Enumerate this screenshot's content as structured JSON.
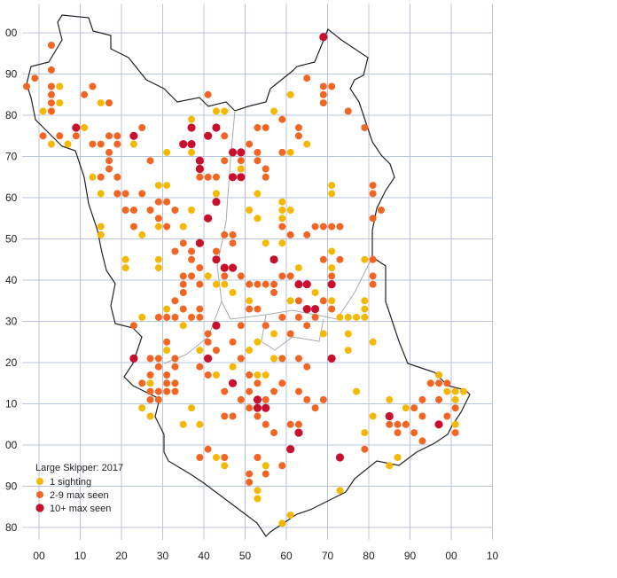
{
  "chart_data": {
    "type": "scatter",
    "title": "Large Skipper:  2017",
    "xlim": [
      -4,
      110
    ],
    "ylim": [
      77,
      207
    ],
    "xticks": [
      {
        "value": 0,
        "label": "00"
      },
      10,
      20,
      30,
      40,
      50,
      60,
      70,
      80,
      90,
      {
        "value": 100,
        "label": "00"
      },
      {
        "value": 110,
        "label": "10"
      }
    ],
    "yticks": [
      80,
      90,
      {
        "value": 100,
        "label": "00"
      },
      {
        "value": 110,
        "label": "10"
      },
      {
        "value": 120,
        "label": "20"
      },
      {
        "value": 130,
        "label": "30"
      },
      {
        "value": 140,
        "label": "40"
      },
      {
        "value": 150,
        "label": "50"
      },
      {
        "value": 160,
        "label": "60"
      },
      {
        "value": 170,
        "label": "70"
      },
      {
        "value": 180,
        "label": "80"
      },
      {
        "value": 190,
        "label": "90"
      },
      {
        "value": 200,
        "label": "00"
      }
    ],
    "grid": true,
    "series": [
      {
        "name": "1 sighting",
        "color": "#f5b800",
        "x": [
          1,
          5,
          5,
          3,
          7,
          11,
          15,
          13,
          15,
          15,
          15,
          21,
          19,
          23,
          23,
          25,
          29,
          29,
          29,
          25,
          29,
          31,
          31,
          37,
          43,
          45,
          47,
          49,
          51,
          53,
          59,
          59,
          59,
          61,
          61,
          65,
          61,
          57,
          71,
          71,
          71,
          71,
          71,
          73,
          75,
          77,
          79,
          79,
          79,
          79,
          81,
          75,
          75,
          77,
          79,
          81,
          85,
          89,
          89,
          95,
          97,
          99,
          101,
          103,
          101,
          101,
          85,
          87,
          73,
          61,
          59,
          53,
          53,
          55,
          43,
          45,
          39,
          39,
          43,
          47,
          51,
          53,
          55,
          57,
          57,
          53,
          47,
          45,
          43,
          41,
          51,
          61,
          67,
          69,
          37,
          35,
          27,
          25,
          27,
          35,
          31,
          31,
          21,
          37,
          35,
          43,
          37,
          53,
          59,
          55,
          63
        ],
        "y": [
          181,
          183,
          187,
          173,
          173,
          177,
          183,
          165,
          161,
          153,
          151,
          145,
          161,
          175,
          173,
          151,
          153,
          145,
          143,
          131,
          163,
          163,
          171,
          179,
          181,
          181,
          171,
          167,
          157,
          155,
          155,
          157,
          159,
          157,
          171,
          173,
          185,
          181,
          163,
          161,
          147,
          143,
          135,
          131,
          131,
          131,
          131,
          135,
          133,
          145,
          125,
          123,
          127,
          113,
          103,
          107,
          111,
          109,
          105,
          115,
          117,
          113,
          113,
          113,
          111,
          105,
          95,
          97,
          89,
          83,
          81,
          89,
          87,
          95,
          97,
          95,
          105,
          123,
          117,
          119,
          123,
          117,
          117,
          121,
          127,
          125,
          137,
          139,
          139,
          141,
          135,
          135,
          137,
          127,
          109,
          105,
          115,
          109,
          107,
          129,
          133,
          123,
          143,
          157,
          153,
          161,
          171,
          161,
          149,
          149,
          143
        ]
      },
      {
        "name": "2-9 max seen",
        "color": "#f26522",
        "x": [
          3,
          -3,
          -1,
          3,
          3,
          3,
          3,
          3,
          1,
          5,
          9,
          11,
          13,
          17,
          13,
          15,
          17,
          19,
          19,
          17,
          17,
          17,
          15,
          19,
          19,
          21,
          21,
          23,
          23,
          25,
          27,
          25,
          27,
          29,
          29,
          31,
          33,
          31,
          33,
          35,
          37,
          37,
          39,
          35,
          37,
          39,
          35,
          35,
          33,
          35,
          33,
          37,
          39,
          39,
          31,
          31,
          29,
          29,
          31,
          31,
          33,
          33,
          33,
          27,
          27,
          23,
          29,
          41,
          41,
          43,
          39,
          41,
          47,
          49,
          45,
          51,
          53,
          49,
          51,
          53,
          55,
          57,
          55,
          57,
          61,
          63,
          59,
          53,
          51,
          51,
          55,
          45,
          47,
          41,
          39,
          45,
          41,
          45,
          53,
          55,
          59,
          63,
          63,
          59,
          51,
          53,
          53,
          55,
          55,
          43,
          41,
          39,
          45,
          49,
          59,
          61,
          57,
          57,
          55,
          53,
          51,
          49,
          47,
          47,
          45,
          43,
          45,
          49,
          55,
          59,
          53,
          51,
          61,
          63,
          65,
          67,
          63,
          69,
          71,
          67,
          65,
          69,
          71,
          73,
          69,
          73,
          71,
          61,
          59,
          69,
          71,
          69,
          69,
          65,
          75,
          79,
          81,
          81,
          83,
          81,
          81,
          81,
          81,
          91,
          93,
          93,
          97,
          99,
          97,
          95,
          89,
          87,
          85,
          87,
          91,
          93,
          97,
          99,
          101,
          101,
          69,
          79,
          51,
          59,
          63,
          65,
          59,
          63,
          65,
          67,
          29,
          27,
          29,
          27,
          25,
          31,
          33
        ],
        "y": [
          197,
          187,
          189,
          191,
          187,
          185,
          183,
          181,
          175,
          175,
          175,
          185,
          187,
          183,
          173,
          173,
          175,
          173,
          175,
          171,
          169,
          167,
          165,
          165,
          161,
          161,
          157,
          157,
          153,
          177,
          169,
          161,
          157,
          159,
          155,
          159,
          157,
          153,
          147,
          149,
          147,
          145,
          143,
          141,
          141,
          139,
          139,
          137,
          135,
          133,
          131,
          131,
          133,
          131,
          131,
          125,
          121,
          119,
          117,
          115,
          119,
          121,
          115,
          121,
          117,
          129,
          131,
          127,
          125,
          123,
          119,
          117,
          125,
          121,
          113,
          117,
          115,
          111,
          109,
          107,
          111,
          113,
          105,
          103,
          105,
          105,
          95,
          97,
          93,
          91,
          93,
          107,
          107,
          99,
          97,
          97,
          185,
          175,
          177,
          177,
          179,
          177,
          175,
          171,
          173,
          171,
          169,
          167,
          165,
          165,
          165,
          165,
          169,
          169,
          141,
          141,
          139,
          137,
          139,
          139,
          139,
          141,
          149,
          151,
          151,
          147,
          141,
          129,
          129,
          131,
          133,
          133,
          127,
          131,
          129,
          131,
          135,
          135,
          133,
          153,
          151,
          153,
          153,
          153,
          145,
          145,
          141,
          151,
          153,
          187,
          187,
          183,
          185,
          189,
          181,
          177,
          163,
          161,
          157,
          155,
          145,
          141,
          139,
          109,
          111,
          107,
          111,
          115,
          115,
          115,
          105,
          105,
          105,
          103,
          103,
          101,
          105,
          107,
          109,
          103,
          111,
          99,
          113,
          121,
          121,
          119,
          115,
          113,
          111,
          109,
          111,
          111,
          113,
          113,
          115,
          113,
          113
        ]
      },
      {
        "name": "10+ max seen",
        "color": "#c8102e",
        "x": [
          69,
          9,
          23,
          37,
          37,
          35,
          41,
          43,
          39,
          39,
          47,
          49,
          47,
          49,
          43,
          41,
          39,
          43,
          45,
          47,
          57,
          63,
          65,
          65,
          67,
          71,
          43,
          23,
          41,
          47,
          53,
          53,
          55,
          63,
          61,
          73,
          85,
          97,
          71
        ],
        "y": [
          199,
          177,
          175,
          177,
          173,
          173,
          175,
          177,
          167,
          169,
          171,
          171,
          165,
          165,
          159,
          155,
          149,
          145,
          143,
          143,
          145,
          139,
          139,
          133,
          133,
          139,
          129,
          121,
          121,
          115,
          111,
          109,
          109,
          103,
          99,
          97,
          107,
          105,
          121
        ]
      }
    ]
  }
}
